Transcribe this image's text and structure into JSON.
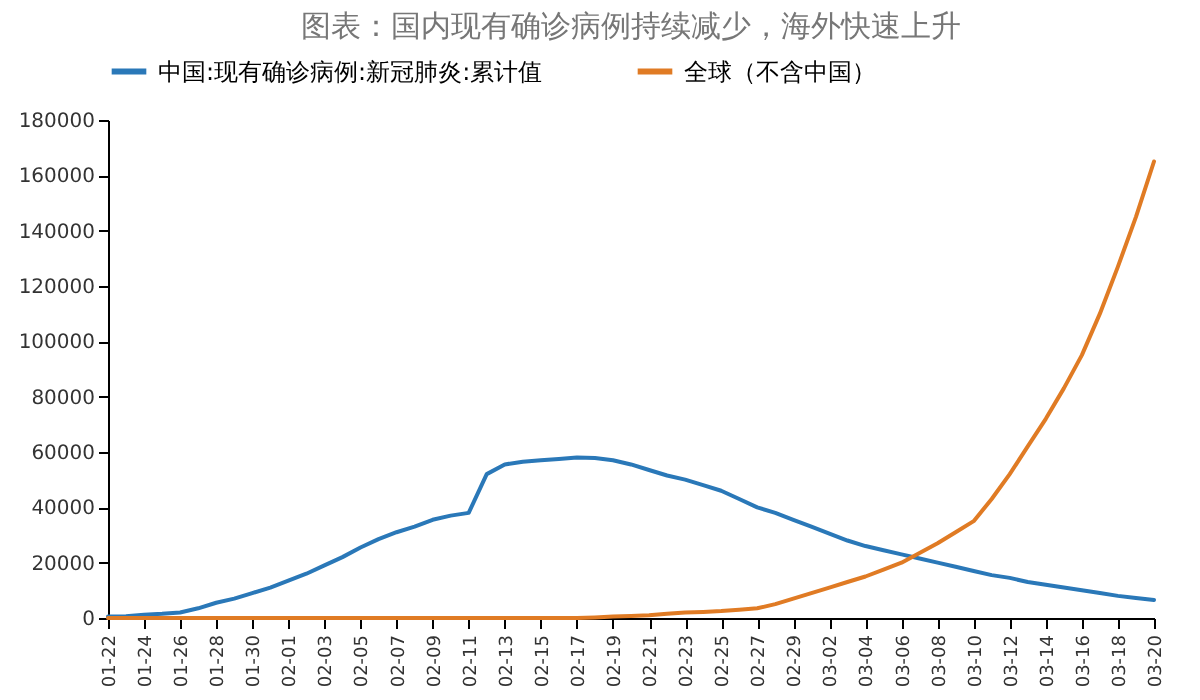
{
  "chart_data": {
    "type": "line",
    "title": "图表：国内现有确诊病例持续减少，海外快速上升",
    "categories": [
      "01-22",
      null,
      "01-24",
      null,
      "01-26",
      null,
      "01-28",
      null,
      "01-30",
      null,
      "02-01",
      null,
      "02-03",
      null,
      "02-05",
      null,
      "02-07",
      null,
      "02-09",
      null,
      "02-11",
      null,
      "02-13",
      null,
      "02-15",
      null,
      "02-17",
      null,
      "02-19",
      null,
      "02-21",
      null,
      "02-23",
      null,
      "02-25",
      null,
      "02-27",
      null,
      "02-29",
      null,
      "03-02",
      null,
      "03-04",
      null,
      "03-06",
      null,
      "03-08",
      null,
      "03-10",
      null,
      "03-12",
      null,
      "03-14",
      null,
      "03-16",
      null,
      "03-18",
      null,
      "03-20"
    ],
    "series": [
      {
        "name": "中国:现有确诊病例:新冠肺炎:累计值",
        "color": "#2a78b8",
        "values": [
          500,
          600,
          1200,
          1500,
          2000,
          3500,
          5500,
          7000,
          9000,
          11000,
          13500,
          16000,
          19000,
          22000,
          25500,
          28500,
          31000,
          33000,
          35500,
          37000,
          38000,
          52000,
          55500,
          56500,
          57000,
          57500,
          58000,
          57800,
          57000,
          55500,
          53500,
          51500,
          50000,
          48000,
          46000,
          43000,
          40000,
          38000,
          35500,
          33000,
          30500,
          28000,
          26000,
          24500,
          23000,
          21500,
          20000,
          18500,
          17000,
          15500,
          14500,
          13000,
          12000,
          11000,
          10000,
          9000,
          8000,
          7200,
          6500
        ]
      },
      {
        "name": "全球（不含中国）",
        "color": "#e07b24",
        "values": [
          0,
          0,
          0,
          0,
          0,
          0,
          0,
          0,
          0,
          0,
          0,
          0,
          0,
          0,
          0,
          0,
          0,
          0,
          0,
          0,
          0,
          0,
          0,
          0,
          0,
          0,
          0,
          200,
          500,
          700,
          1000,
          1500,
          2000,
          2200,
          2500,
          3000,
          3500,
          5000,
          7000,
          9000,
          11000,
          13000,
          15000,
          17500,
          20000,
          23500,
          27000,
          31000,
          35000,
          43000,
          52000,
          62000,
          72000,
          83000,
          95000,
          110000,
          127000,
          145000,
          165000
        ]
      }
    ],
    "ylim": [
      0,
      180000
    ],
    "yticks": [
      0,
      20000,
      40000,
      60000,
      80000,
      100000,
      120000,
      140000,
      160000,
      180000
    ],
    "grid": false,
    "legend": "top",
    "marker": "none",
    "line_style": "solid"
  }
}
